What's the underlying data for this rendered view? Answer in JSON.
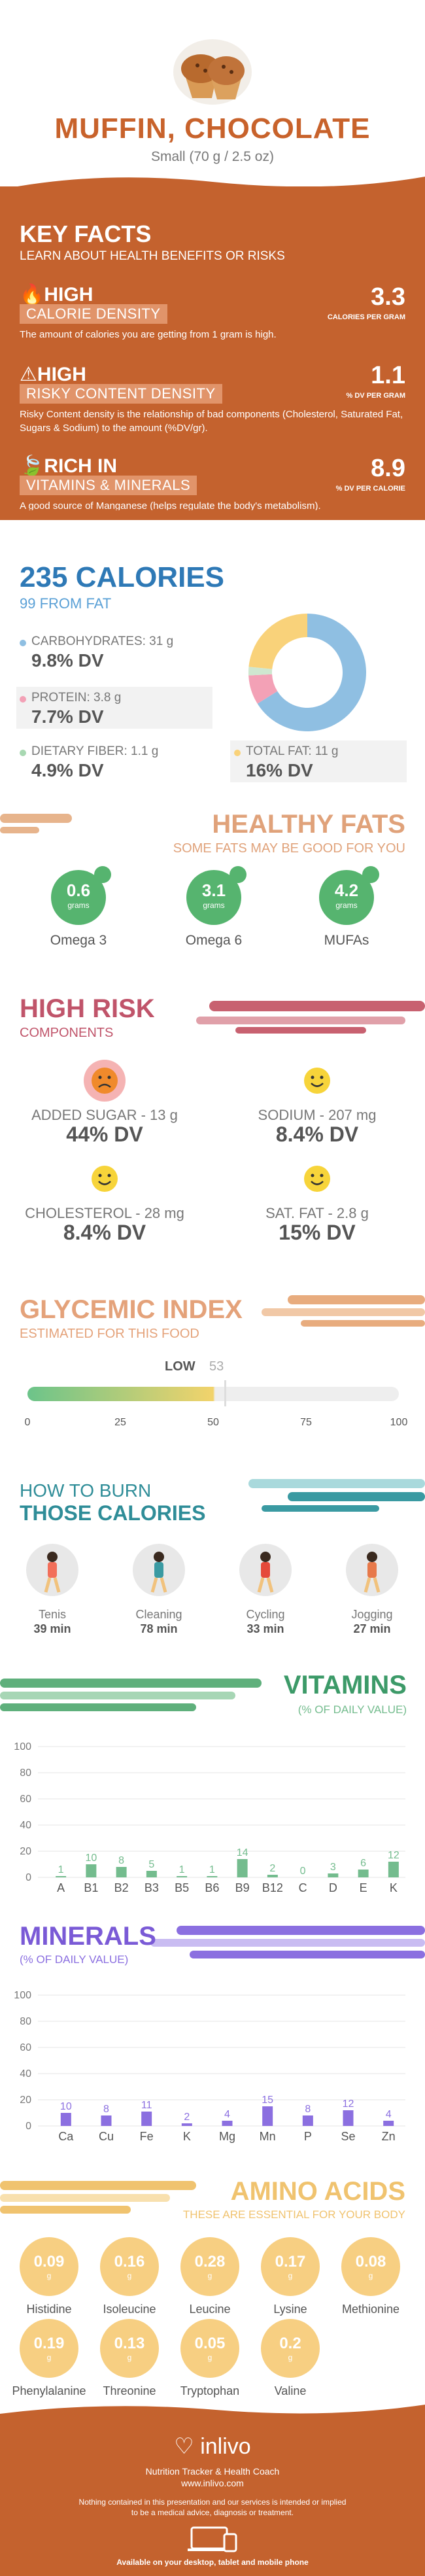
{
  "header": {
    "title": "MUFFIN, CHOCOLATE",
    "serving": "Small (70 g / 2.5 oz)"
  },
  "key_facts": {
    "title": "KEY FACTS",
    "subtitle": "LEARN ABOUT HEALTH BENEFITS OR RISKS",
    "items": [
      {
        "level": "HIGH",
        "name": "CALORIE DENSITY",
        "value": "3.3",
        "unit": "CALORIES PER GRAM",
        "desc": "The amount of calories you are getting from 1 gram is high."
      },
      {
        "level": "HIGH",
        "name": "RISKY CONTENT DENSITY",
        "value": "1.1",
        "unit": "% DV PER GRAM",
        "desc": "Risky Content density is the relationship of bad components (Cholesterol, Saturated Fat, Sugars & Sodium) to the amount (%DV/gr)."
      },
      {
        "level": "RICH  IN",
        "name": "VITAMINS & MINERALS",
        "value": "8.9",
        "unit": "% DV PER CALORIE",
        "desc": "A good source of Manganese (helps regulate the body's metabolism)."
      }
    ]
  },
  "calories": {
    "title": "235 CALORIES",
    "from_fat": "99 FROM FAT",
    "carbs_label": "CARBOHYDRATES: 31 g",
    "carbs_dv": "9.8% DV",
    "protein_label": "PROTEIN: 3.8 g",
    "protein_dv": "7.7% DV",
    "fiber_label": "DIETARY FIBER: 1.1 g",
    "fiber_dv": "4.9% DV",
    "fat_label": "TOTAL FAT: 11 g",
    "fat_dv": "16% DV",
    "donut": [
      {
        "name": "carbs",
        "value": 31,
        "color": "#8fbfe2"
      },
      {
        "name": "protein",
        "value": 3.8,
        "color": "#f3a1b6"
      },
      {
        "name": "fiber",
        "value": 1.1,
        "color": "#cfe7d0"
      },
      {
        "name": "fat",
        "value": 11,
        "color": "#f9d27a"
      }
    ]
  },
  "healthy_fats": {
    "title": "HEALTHY FATS",
    "subtitle": "SOME FATS MAY BE GOOD FOR YOU",
    "items": [
      {
        "value": "0.6",
        "unit": "grams",
        "name": "Omega 3"
      },
      {
        "value": "3.1",
        "unit": "grams",
        "name": "Omega 6"
      },
      {
        "value": "4.2",
        "unit": "grams",
        "name": "MUFAs"
      }
    ]
  },
  "high_risk": {
    "title": "HIGH RISK",
    "subtitle": "COMPONENTS",
    "items": [
      {
        "label": "ADDED SUGAR - 13 g",
        "dv": "44% DV",
        "face": "sad"
      },
      {
        "label": "SODIUM - 207 mg",
        "dv": "8.4% DV",
        "face": "happy"
      },
      {
        "label": "CHOLESTEROL - 28 mg",
        "dv": "8.4% DV",
        "face": "happy"
      },
      {
        "label": "SAT. FAT - 2.8 g",
        "dv": "15% DV",
        "face": "happy"
      }
    ]
  },
  "glycemic": {
    "title": "GLYCEMIC INDEX",
    "subtitle": "ESTIMATED FOR THIS FOOD",
    "level": "LOW",
    "value": 53,
    "axis": [
      "0",
      "25",
      "50",
      "75",
      "100"
    ]
  },
  "burn": {
    "title1": "HOW TO BURN",
    "title2": "THOSE CALORIES",
    "items": [
      {
        "name": "Tenis",
        "time": "39 min"
      },
      {
        "name": "Cleaning",
        "time": "78 min"
      },
      {
        "name": "Cycling",
        "time": "33 min"
      },
      {
        "name": "Jogging",
        "time": "27 min"
      }
    ]
  },
  "vitamins": {
    "title": "VITAMINS",
    "subtitle": "(% OF DAILY VALUE)",
    "color": "#74bc8e"
  },
  "minerals": {
    "title": "MINERALS",
    "subtitle": "(% OF DAILY VALUE)",
    "color": "#8b6fe0"
  },
  "chart_data": [
    {
      "type": "bar",
      "title": "VITAMINS",
      "ylabel": "(% OF DAILY VALUE)",
      "ylim": [
        0,
        100
      ],
      "yticks": [
        0,
        20,
        40,
        60,
        80,
        100
      ],
      "categories": [
        "A",
        "B1",
        "B2",
        "B3",
        "B5",
        "B6",
        "B9",
        "B12",
        "C",
        "D",
        "E",
        "K"
      ],
      "values": [
        1,
        10,
        8,
        5,
        1,
        1,
        14,
        2,
        0,
        3,
        6,
        12
      ]
    },
    {
      "type": "bar",
      "title": "MINERALS",
      "ylabel": "(% OF DAILY VALUE)",
      "ylim": [
        0,
        100
      ],
      "yticks": [
        0,
        20,
        40,
        60,
        80,
        100
      ],
      "categories": [
        "Ca",
        "Cu",
        "Fe",
        "K",
        "Mg",
        "Mn",
        "P",
        "Se",
        "Zn"
      ],
      "values": [
        10,
        8,
        11,
        2,
        4,
        15,
        8,
        12,
        4
      ]
    }
  ],
  "amino": {
    "title": "AMINO ACIDS",
    "subtitle": "THESE ARE ESSENTIAL FOR YOUR BODY",
    "unit": "g",
    "items": [
      {
        "value": "0.09",
        "name": "Histidine"
      },
      {
        "value": "0.16",
        "name": "Isoleucine"
      },
      {
        "value": "0.28",
        "name": "Leucine"
      },
      {
        "value": "0.17",
        "name": "Lysine"
      },
      {
        "value": "0.08",
        "name": "Methionine"
      },
      {
        "value": "0.19",
        "name": "Phenylalanine"
      },
      {
        "value": "0.13",
        "name": "Threonine"
      },
      {
        "value": "0.05",
        "name": "Tryptophan"
      },
      {
        "value": "0.2",
        "name": "Valine"
      }
    ]
  },
  "footer": {
    "brand": "inlivo",
    "tagline": "Nutrition Tracker & Health Coach",
    "url": "www.inlivo.com",
    "disclaimer1": "Nothing contained in this presentation and our services is intended or implied",
    "disclaimer2": "to be a medical advice, diagnosis or treatment.",
    "devices": "Available on your desktop, tablet and mobile phone"
  }
}
